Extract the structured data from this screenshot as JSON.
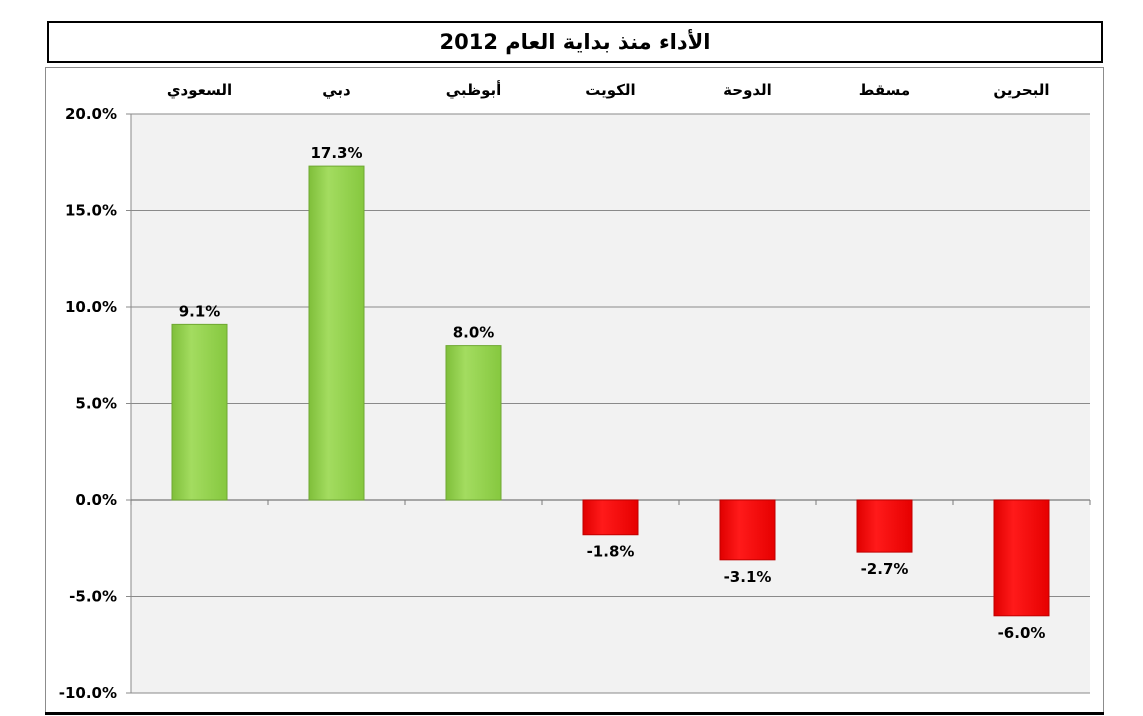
{
  "chart_data": {
    "type": "bar",
    "title": "الأداء منذ بداية العام 2012",
    "categories": [
      "السعودي",
      "دبي",
      "أبوظبي",
      "الكويت",
      "الدوحة",
      "مسقط",
      "البحرين"
    ],
    "values": [
      9.1,
      17.3,
      8.0,
      -1.8,
      -3.1,
      -2.7,
      -6.0
    ],
    "value_labels": [
      "9.1%",
      "17.3%",
      "8.0%",
      "-1.8%",
      "-3.1%",
      "-2.7%",
      "-6.0%"
    ],
    "ylim": [
      -10,
      20
    ],
    "yticks": [
      20,
      15,
      10,
      5,
      0,
      -5,
      -10
    ],
    "ytick_labels": [
      "20.0%",
      "15.0%",
      "10.0%",
      "5.0%",
      "0.0%",
      "-5.0%",
      "-10.0%"
    ],
    "xlabel": "",
    "ylabel": "",
    "grid": true,
    "colors": {
      "positive": "#92d050",
      "negative": "#ff0000"
    }
  }
}
